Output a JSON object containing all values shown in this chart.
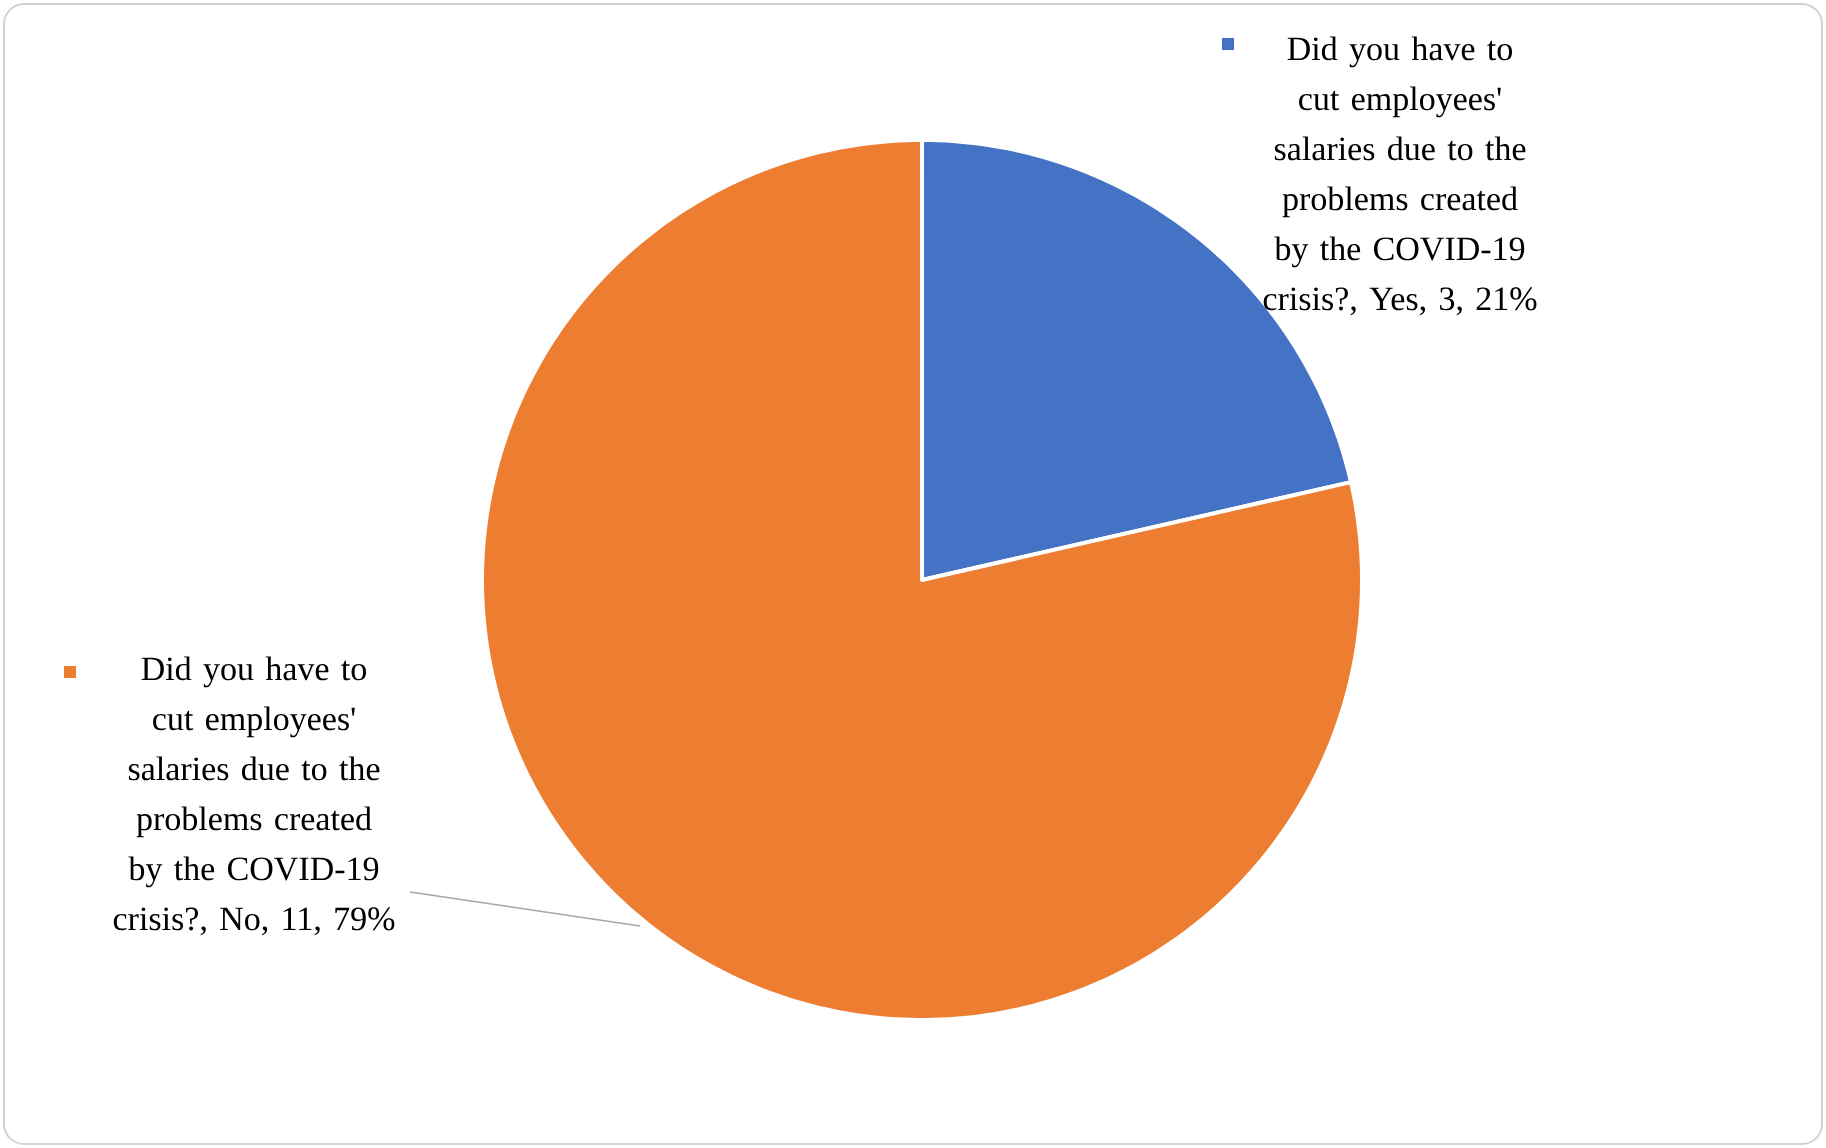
{
  "chart_data": {
    "type": "pie",
    "categories": [
      "Did you have to cut employees' salaries due to the problems created by the COVID-19 crisis?, Yes, 3, 21%",
      "Did you have to cut employees' salaries due to the problems created by the COVID-19 crisis?, No, 11, 79%"
    ],
    "values": [
      3,
      11
    ],
    "colors": [
      "#4472c4",
      "#ed7d31"
    ],
    "legend": "top left"
  }
}
